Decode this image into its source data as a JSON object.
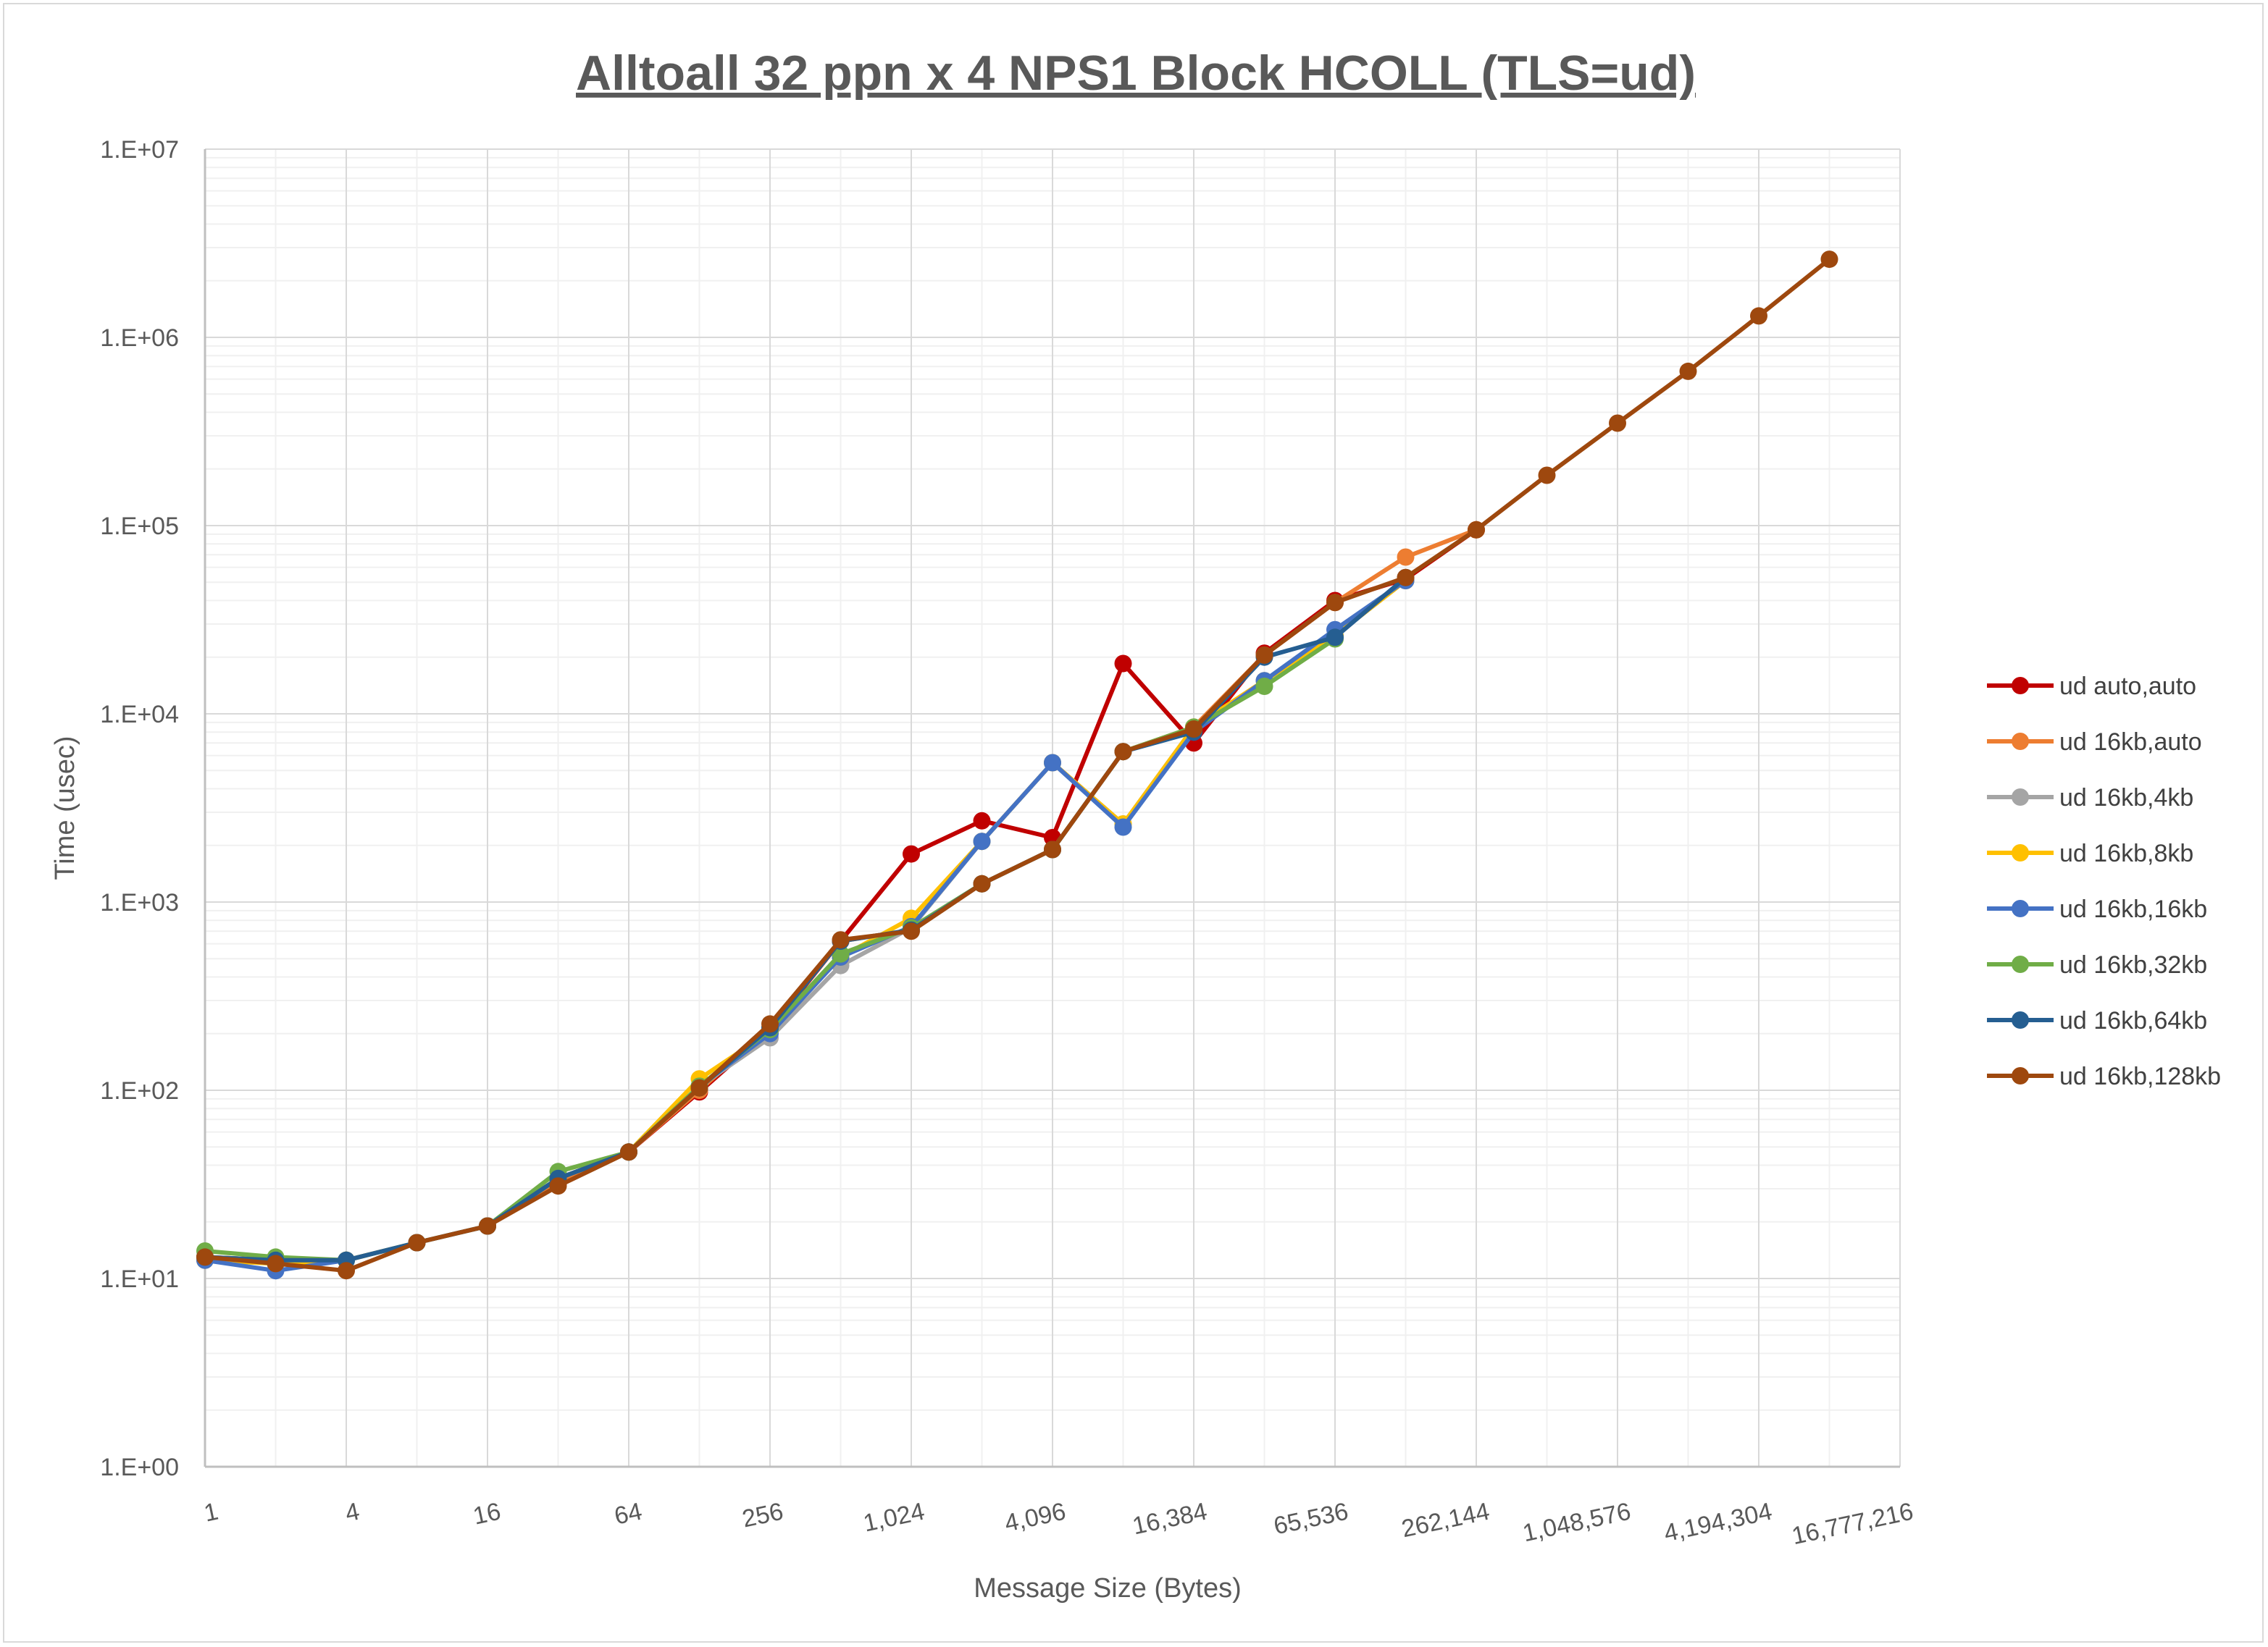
{
  "chart_data": {
    "type": "line",
    "title": "Alltoall 32 ppn x 4 NPS1 Block HCOLL (TLS=ud)",
    "xlabel": "Message Size (Bytes)",
    "ylabel": "Time (usec)",
    "x_scale": "log2",
    "y_scale": "log10",
    "xlim": [
      1,
      16777216
    ],
    "ylim": [
      1,
      10000000
    ],
    "x_ticks": [
      1,
      4,
      16,
      64,
      256,
      1024,
      4096,
      16384,
      65536,
      262144,
      1048576,
      4194304,
      16777216
    ],
    "x_tick_labels": [
      "1",
      "4",
      "16",
      "64",
      "256",
      "1,024",
      "4,096",
      "16,384",
      "65,536",
      "262,144",
      "1,048,576",
      "4,194,304",
      "16,777,216"
    ],
    "y_ticks": [
      1,
      10,
      100,
      1000,
      10000,
      100000,
      1000000,
      10000000
    ],
    "y_tick_labels": [
      "1.E+00",
      "1.E+01",
      "1.E+02",
      "1.E+03",
      "1.E+04",
      "1.E+05",
      "1.E+06",
      "1.E+07"
    ],
    "grid": true,
    "legend_position": "right",
    "series": [
      {
        "name": "ud auto,auto",
        "color": "#c00000",
        "x": [
          1,
          2,
          4,
          8,
          16,
          32,
          64,
          128,
          256,
          512,
          1024,
          2048,
          4096,
          8192,
          16384,
          32768,
          65536,
          131072,
          262144
        ],
        "y": [
          13,
          12.5,
          12.5,
          15.5,
          19,
          32,
          47,
          98,
          210,
          620,
          1800,
          2700,
          2200,
          18500,
          7000,
          21000,
          40000,
          52000,
          95000
        ]
      },
      {
        "name": "ud 16kb,auto",
        "color": "#ed7d31",
        "x": [
          1,
          2,
          4,
          8,
          16,
          32,
          64,
          128,
          256,
          512,
          1024,
          2048,
          4096,
          8192,
          16384,
          32768,
          65536,
          131072,
          262144
        ],
        "y": [
          13,
          12.5,
          12.5,
          15.5,
          19,
          33,
          47,
          100,
          215,
          620,
          710,
          1250,
          1900,
          6300,
          8500,
          20500,
          39000,
          68000,
          95000
        ]
      },
      {
        "name": "ud 16kb,4kb",
        "color": "#a5a5a5",
        "x": [
          1,
          2,
          4,
          8,
          16,
          32,
          64,
          128,
          256,
          512,
          1024,
          2048,
          4096,
          8192,
          16384,
          32768,
          65536,
          131072
        ],
        "y": [
          12.5,
          12,
          12.5,
          15.5,
          19,
          34,
          47,
          105,
          190,
          460,
          730,
          2100,
          5500,
          2600,
          8500,
          15000,
          26000,
          51000
        ]
      },
      {
        "name": "ud 16kb,8kb",
        "color": "#ffc000",
        "x": [
          1,
          2,
          4,
          8,
          16,
          32,
          64,
          128,
          256,
          512,
          1024,
          2048,
          4096,
          8192,
          16384,
          32768,
          65536,
          131072
        ],
        "y": [
          12.5,
          12,
          12.5,
          15.5,
          19,
          34,
          47,
          115,
          205,
          510,
          820,
          2100,
          5500,
          2600,
          8500,
          15000,
          26000,
          51000
        ]
      },
      {
        "name": "ud 16kb,16kb",
        "color": "#4472c4",
        "x": [
          1,
          2,
          4,
          8,
          16,
          32,
          64,
          128,
          256,
          512,
          1024,
          2048,
          4096,
          8192,
          16384,
          32768,
          65536,
          131072
        ],
        "y": [
          12.5,
          11,
          12.5,
          15.5,
          19,
          34,
          47,
          105,
          200,
          510,
          740,
          2100,
          5500,
          2500,
          8000,
          15000,
          28000,
          51000
        ]
      },
      {
        "name": "ud 16kb,32kb",
        "color": "#70ad47",
        "x": [
          1,
          2,
          4,
          8,
          16,
          32,
          64,
          128,
          256,
          512,
          1024,
          2048,
          4096,
          8192,
          16384,
          32768,
          65536
        ],
        "y": [
          14,
          13,
          12.5,
          15.5,
          19,
          37,
          47,
          105,
          210,
          530,
          730,
          1250,
          1900,
          6300,
          8500,
          14000,
          25000
        ]
      },
      {
        "name": "ud 16kb,64kb",
        "color": "#255e91",
        "x": [
          1,
          2,
          4,
          8,
          16,
          32,
          64,
          128,
          256,
          512,
          1024,
          2048,
          4096,
          8192,
          16384,
          32768,
          65536,
          131072
        ],
        "y": [
          13,
          12.5,
          12.5,
          15.5,
          19,
          34,
          47,
          103,
          215,
          620,
          710,
          1250,
          1900,
          6300,
          8000,
          20000,
          25500,
          53000
        ]
      },
      {
        "name": "ud 16kb,128kb",
        "color": "#9e480e",
        "x": [
          1,
          2,
          4,
          8,
          16,
          32,
          64,
          128,
          256,
          512,
          1024,
          2048,
          4096,
          8192,
          16384,
          32768,
          65536,
          131072,
          262144,
          524288,
          1048576,
          2097152,
          4194304,
          8388608
        ],
        "y": [
          13,
          12,
          11,
          15.5,
          19,
          31,
          47,
          103,
          225,
          630,
          700,
          1250,
          1900,
          6300,
          8300,
          20500,
          39000,
          53000,
          95000,
          185000,
          350000,
          660000,
          1300000,
          2600000
        ]
      }
    ]
  }
}
